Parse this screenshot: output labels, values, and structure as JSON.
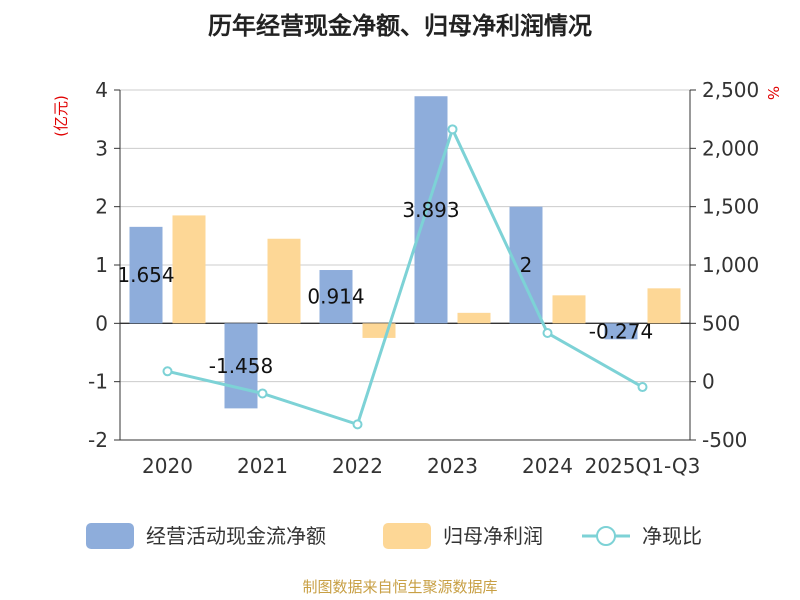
{
  "chart_data": {
    "type": "bar",
    "title": "历年经营现金净额、归母净利润情况",
    "categories": [
      "2020",
      "2021",
      "2022",
      "2023",
      "2024",
      "2025Q1-Q3"
    ],
    "series": [
      {
        "name": "经营活动现金流净额",
        "type": "bar",
        "axis": "left",
        "color": "#8eaddb",
        "values": [
          1.654,
          -1.458,
          0.914,
          3.893,
          2,
          -0.274
        ],
        "labels": [
          "1.654",
          "-1.458",
          "0.914",
          "3.893",
          "2",
          "-0.274"
        ]
      },
      {
        "name": "归母净利润",
        "type": "bar",
        "axis": "left",
        "color": "#fdd796",
        "values": [
          1.85,
          1.45,
          -0.25,
          0.18,
          0.48,
          0.6
        ]
      },
      {
        "name": "净现比",
        "type": "line",
        "axis": "right",
        "color": "#7dd2d6",
        "values": [
          89,
          -101,
          -366,
          2163,
          417,
          -46
        ]
      }
    ],
    "left_axis": {
      "unit": "(亿元)",
      "ylim": [
        -2,
        4
      ],
      "ticks": [
        -2,
        -1,
        0,
        1,
        2,
        3,
        4
      ],
      "tick_labels": [
        "-2",
        "-1",
        "0",
        "1",
        "2",
        "3",
        "4"
      ]
    },
    "right_axis": {
      "unit": "%",
      "ylim": [
        -500,
        2500
      ],
      "ticks": [
        -500,
        0,
        500,
        1000,
        1500,
        2000,
        2500
      ],
      "tick_labels": [
        "-500",
        "0",
        "500",
        "1,000",
        "1,500",
        "2,000",
        "2,500"
      ]
    },
    "grid": true,
    "legend_position": "bottom"
  },
  "source": "制图数据来自恒生聚源数据库"
}
